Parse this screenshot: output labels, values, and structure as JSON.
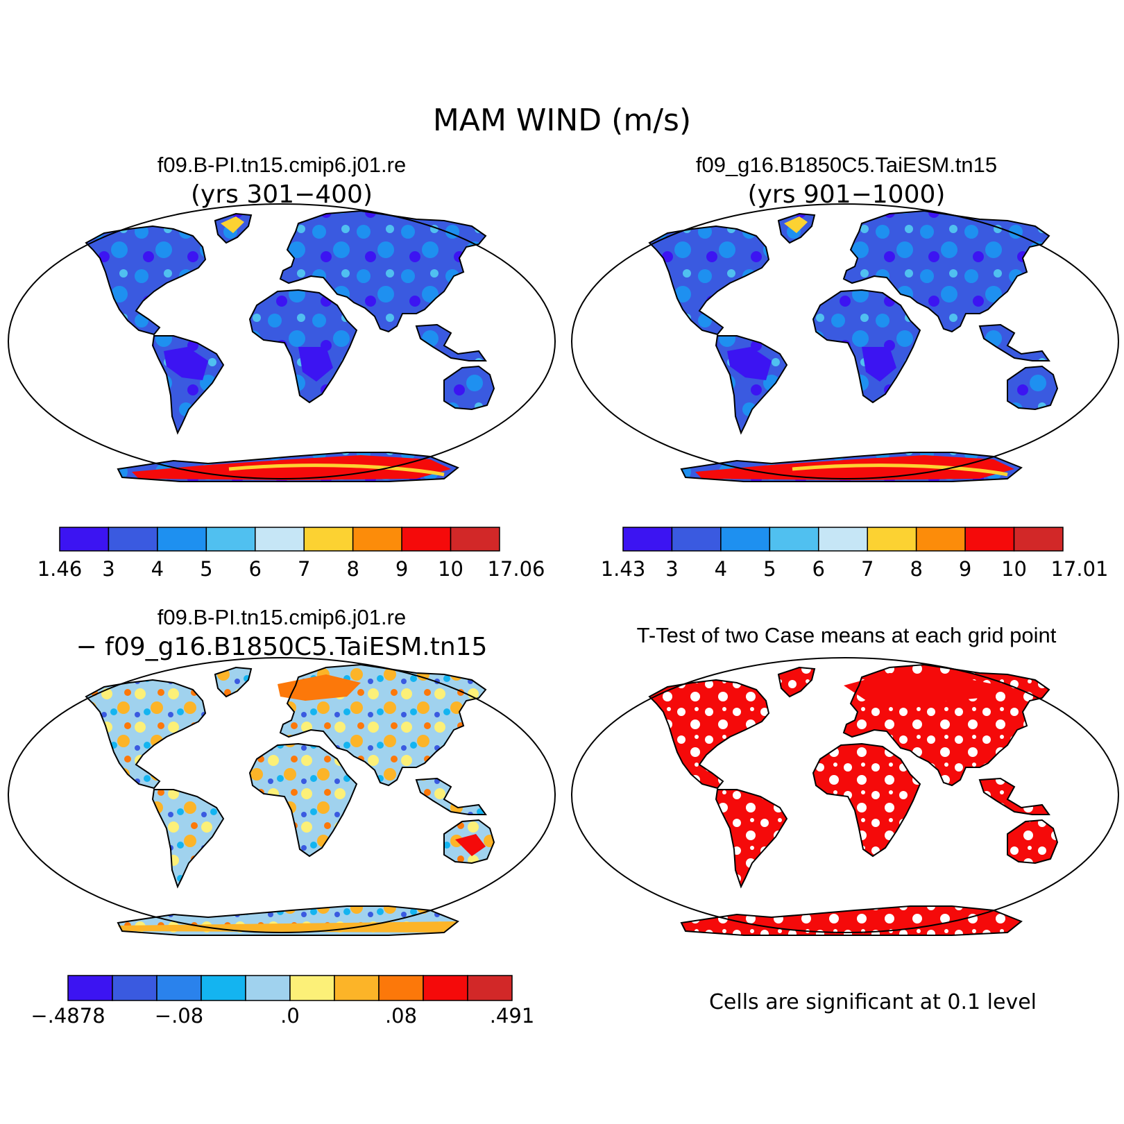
{
  "title": "MAM WIND (m/s)",
  "panels": [
    {
      "kind": "field",
      "case_name": "f09.B-PI.tn15.cmip6.j01.re",
      "subtitle": "(yrs 301−400)",
      "palette": "wind",
      "colorbar": {
        "colors": [
          "#3c14f2",
          "#3a5ae0",
          "#1e90f0",
          "#50c0f0",
          "#c6e6f6",
          "#fcd232",
          "#fc8c0a",
          "#f50a0a",
          "#d22828"
        ],
        "labels": [
          "1.46",
          "3",
          "4",
          "5",
          "6",
          "7",
          "8",
          "9",
          "10",
          "17.06"
        ]
      }
    },
    {
      "kind": "field",
      "case_name": "f09_g16.B1850C5.TaiESM.tn15",
      "subtitle": "(yrs 901−1000)",
      "palette": "wind",
      "colorbar": {
        "colors": [
          "#3c14f2",
          "#3a5ae0",
          "#1e90f0",
          "#50c0f0",
          "#c6e6f6",
          "#fcd232",
          "#fc8c0a",
          "#f50a0a",
          "#d22828"
        ],
        "labels": [
          "1.43",
          "3",
          "4",
          "5",
          "6",
          "7",
          "8",
          "9",
          "10",
          "17.01"
        ]
      }
    },
    {
      "kind": "difference",
      "case_name": "f09.B-PI.tn15.cmip6.j01.re",
      "subtitle": "− f09_g16.B1850C5.TaiESM.tn15",
      "palette": "diff",
      "colorbar": {
        "colors": [
          "#3c14f2",
          "#3a5ae0",
          "#2a82ec",
          "#14b4f0",
          "#a0d2ee",
          "#fcf078",
          "#fcb428",
          "#fc780a",
          "#f50a0a",
          "#d22828"
        ],
        "labels": [
          "−.4878",
          "−.08",
          ".0",
          ".08",
          ".491"
        ]
      }
    },
    {
      "kind": "ttest",
      "case_name": "T-Test of two Case means at each grid point",
      "footnote": "Cells are significant at 0.1 level",
      "palette": "sig"
    }
  ],
  "colors": {
    "coast": "#000000",
    "significant": "#f50a0a",
    "ocean": "#ffffff"
  }
}
